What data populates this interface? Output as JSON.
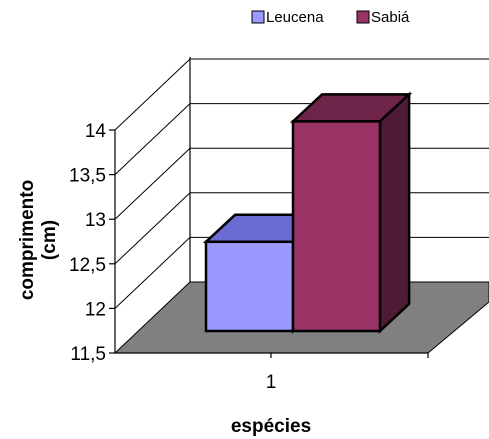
{
  "chart_data": {
    "type": "bar",
    "categories": [
      "1"
    ],
    "series": [
      {
        "name": "Leucena",
        "values": [
          12.5
        ],
        "color": "#9999ff",
        "top_color": "#6b6bd6",
        "side_color": "#5c5cae"
      },
      {
        "name": "Sabiá",
        "values": [
          13.85
        ],
        "color": "#993366",
        "top_color": "#6e2449",
        "side_color": "#4f1a35"
      }
    ],
    "ylim": [
      11.5,
      14
    ],
    "yticks": [
      "11,5",
      "12",
      "12,5",
      "13",
      "13,5",
      "14"
    ],
    "ylabel_line1": "comprimento",
    "ylabel_line2": "(cm)",
    "xlabel": "espécies",
    "grid": true,
    "legend_position": "top",
    "floor_color": "#808080"
  }
}
